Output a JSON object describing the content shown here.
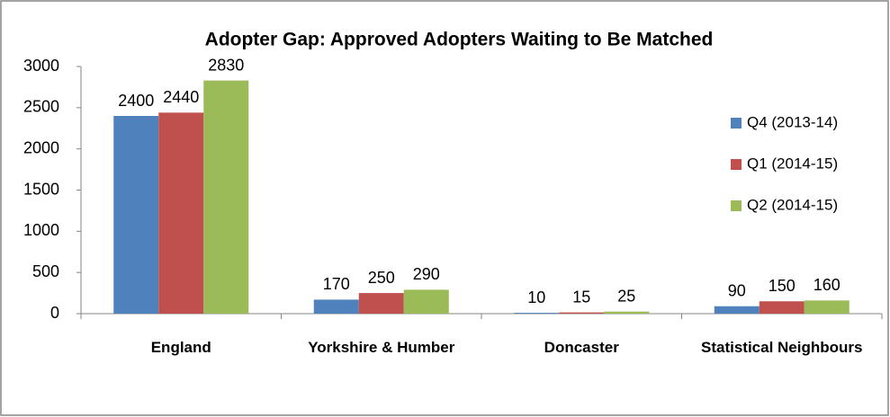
{
  "chart_data": {
    "type": "bar",
    "title": "Adopter Gap: Approved Adopters Waiting to Be Matched",
    "categories": [
      "England",
      "Yorkshire & Humber",
      "Doncaster",
      "Statistical Neighbours"
    ],
    "series": [
      {
        "name": "Q4 (2013-14)",
        "color": "#4f81bd",
        "values": [
          2400,
          170,
          10,
          90
        ]
      },
      {
        "name": "Q1 (2014-15)",
        "color": "#c0504d",
        "values": [
          2440,
          250,
          15,
          150
        ]
      },
      {
        "name": "Q2 (2014-15)",
        "color": "#9bbb59",
        "values": [
          2830,
          290,
          25,
          160
        ]
      }
    ],
    "ylim": [
      0,
      3000
    ],
    "yticks": [
      0,
      500,
      1000,
      1500,
      2000,
      2500,
      3000
    ],
    "grid": false,
    "legend": "right"
  }
}
